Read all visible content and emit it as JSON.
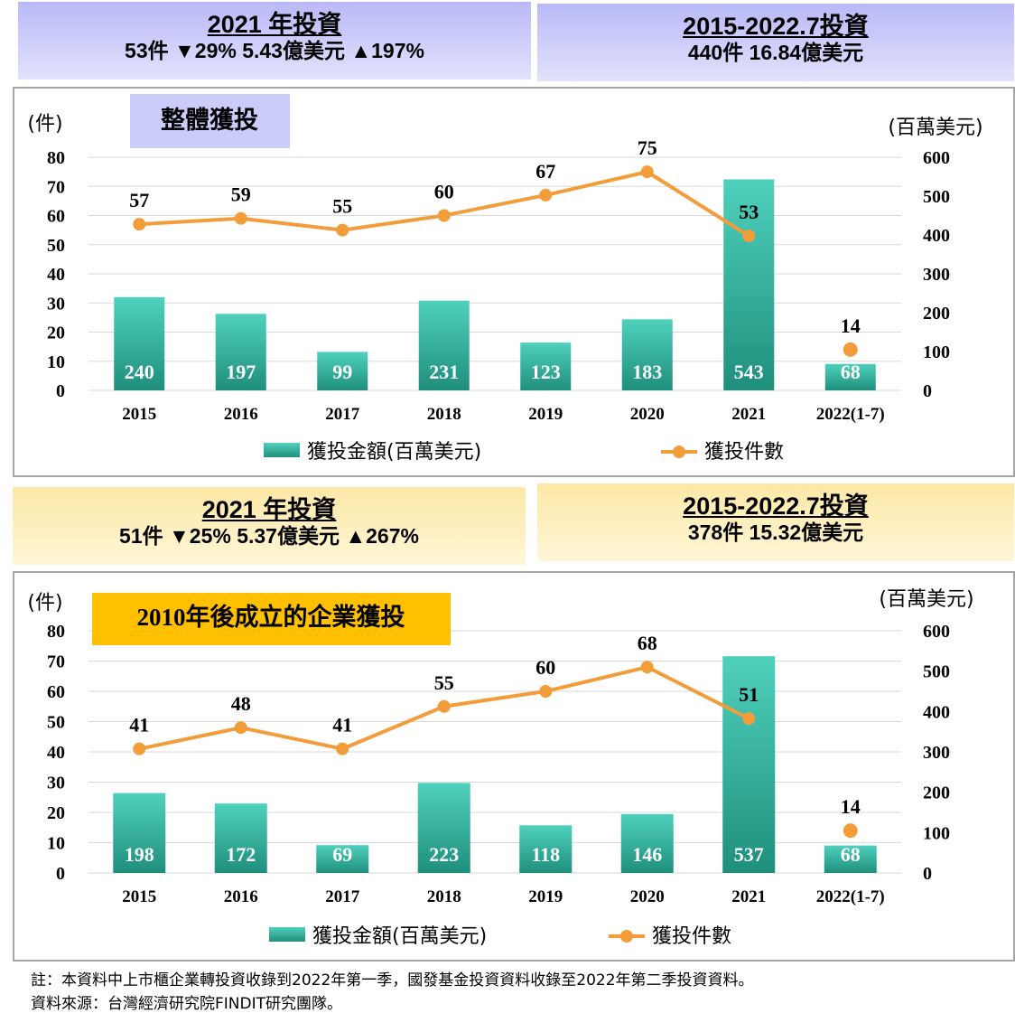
{
  "summaries": [
    {
      "title": "2021 年投資",
      "line": "53件 ▼29%  5.43億美元 ▲197%"
    },
    {
      "title": "2015-2022.7投資",
      "line": "440件   16.84億美元"
    },
    {
      "title": "2021 年投資",
      "line": "51件 ▼25%  5.37億美元 ▲267%"
    },
    {
      "title": "2015-2022.7投資",
      "line": "378件   15.32億美元"
    }
  ],
  "chart_data": [
    {
      "type": "bar",
      "title": "整體獲投",
      "left_unit": "(件)",
      "right_unit": "(百萬美元)",
      "categories": [
        "2015",
        "2016",
        "2017",
        "2018",
        "2019",
        "2020",
        "2021",
        "2022(1-7)"
      ],
      "left_ylim": [
        0,
        80
      ],
      "left_ticks": [
        "0",
        "10",
        "20",
        "30",
        "40",
        "50",
        "60",
        "70",
        "80"
      ],
      "right_ylim": [
        0,
        600
      ],
      "right_ticks": [
        "0",
        "100",
        "200",
        "300",
        "400",
        "500",
        "600"
      ],
      "series": [
        {
          "name": "獲投金額(百萬美元)",
          "type": "bar",
          "axis": "right",
          "color": "#2eb8a0",
          "values": [
            240,
            197,
            99,
            231,
            123,
            183,
            543,
            68
          ]
        },
        {
          "name": "獲投件數",
          "type": "line",
          "axis": "left",
          "color": "#f39c3a",
          "values": [
            57,
            59,
            55,
            60,
            67,
            75,
            53,
            14
          ]
        }
      ],
      "grid": true,
      "legend": "bottom"
    },
    {
      "type": "bar",
      "title": "2010年後成立的企業獲投",
      "left_unit": "(件)",
      "right_unit": "(百萬美元)",
      "categories": [
        "2015",
        "2016",
        "2017",
        "2018",
        "2019",
        "2020",
        "2021",
        "2022(1-7)"
      ],
      "left_ylim": [
        0,
        80
      ],
      "left_ticks": [
        "0",
        "10",
        "20",
        "30",
        "40",
        "50",
        "60",
        "70",
        "80"
      ],
      "right_ylim": [
        0,
        600
      ],
      "right_ticks": [
        "0",
        "100",
        "200",
        "300",
        "400",
        "500",
        "600"
      ],
      "series": [
        {
          "name": "獲投金額(百萬美元)",
          "type": "bar",
          "axis": "right",
          "color": "#2eb8a0",
          "values": [
            198,
            172,
            69,
            223,
            118,
            146,
            537,
            68
          ]
        },
        {
          "name": "獲投件數",
          "type": "line",
          "axis": "left",
          "color": "#f39c3a",
          "values": [
            41,
            48,
            41,
            55,
            60,
            68,
            51,
            14
          ]
        }
      ],
      "grid": true,
      "legend": "bottom"
    }
  ],
  "notes": [
    "註：本資料中上市櫃企業轉投資收錄到2022年第一季，國發基金投資資料收錄至2022年第二季投資資料。",
    "資料來源：台灣經濟研究院FINDIT研究團隊。"
  ]
}
